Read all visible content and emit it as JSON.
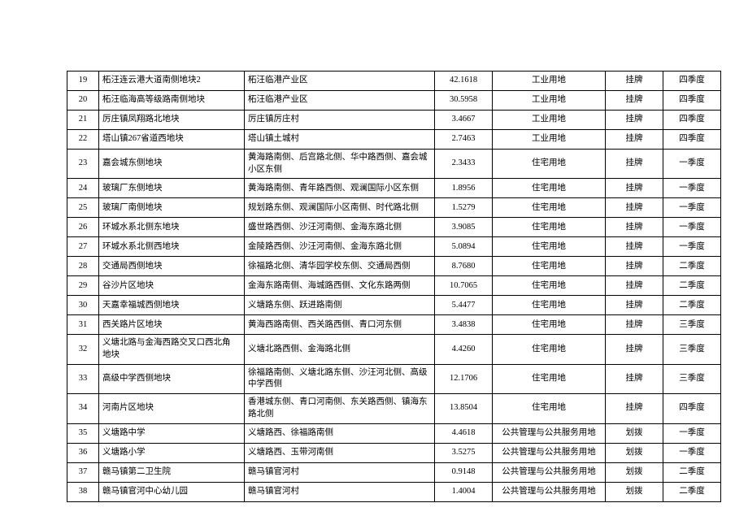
{
  "table": {
    "rows": [
      {
        "idx": "19",
        "name": "柘汪连云港大道南侧地块2",
        "loc": "柘汪临港产业区",
        "area": "42.1618",
        "use": "工业用地",
        "method": "挂牌",
        "quarter": "四季度"
      },
      {
        "idx": "20",
        "name": "柘汪临海高等级路南侧地块",
        "loc": "柘汪临港产业区",
        "area": "30.5958",
        "use": "工业用地",
        "method": "挂牌",
        "quarter": "四季度"
      },
      {
        "idx": "21",
        "name": "厉庄镇凤翔路北地块",
        "loc": "厉庄镇厉庄村",
        "area": "3.4667",
        "use": "工业用地",
        "method": "挂牌",
        "quarter": "四季度"
      },
      {
        "idx": "22",
        "name": "塔山镇267省道西地块",
        "loc": "塔山镇土城村",
        "area": "2.7463",
        "use": "工业用地",
        "method": "挂牌",
        "quarter": "四季度"
      },
      {
        "idx": "23",
        "name": "嘉会城东侧地块",
        "loc": "黄海路南侧、后宫路北侧、华中路西侧、嘉会城小区东侧",
        "area": "2.3433",
        "use": "住宅用地",
        "method": "挂牌",
        "quarter": "一季度"
      },
      {
        "idx": "24",
        "name": "玻璃厂东侧地块",
        "loc": "黄海路南侧、青年路西侧、观澜国际小区东侧",
        "area": "1.8956",
        "use": "住宅用地",
        "method": "挂牌",
        "quarter": "一季度"
      },
      {
        "idx": "25",
        "name": "玻璃厂南侧地块",
        "loc": "规划路东侧、观澜国际小区南侧、时代路北侧",
        "area": "1.5279",
        "use": "住宅用地",
        "method": "挂牌",
        "quarter": "一季度"
      },
      {
        "idx": "26",
        "name": "环城水系北侧东地块",
        "loc": "盛世路西侧、沙汪河南侧、金海东路北侧",
        "area": "3.9085",
        "use": "住宅用地",
        "method": "挂牌",
        "quarter": "一季度"
      },
      {
        "idx": "27",
        "name": "环城水系北侧西地块",
        "loc": "金陵路西侧、沙汪河南侧、金海东路北侧",
        "area": "5.0894",
        "use": "住宅用地",
        "method": "挂牌",
        "quarter": "一季度"
      },
      {
        "idx": "28",
        "name": "交通局西侧地块",
        "loc": "徐福路北侧、清华园学校东侧、交通局西侧",
        "area": "8.7680",
        "use": "住宅用地",
        "method": "挂牌",
        "quarter": "二季度"
      },
      {
        "idx": "29",
        "name": "谷沙片区地块",
        "loc": "金海东路南侧、海城路西侧、文化东路两侧",
        "area": "10.7065",
        "use": "住宅用地",
        "method": "挂牌",
        "quarter": "二季度"
      },
      {
        "idx": "30",
        "name": "天嘉幸福城西侧地块",
        "loc": "义塘路东侧、跃进路南侧",
        "area": "5.4477",
        "use": "住宅用地",
        "method": "挂牌",
        "quarter": "二季度"
      },
      {
        "idx": "31",
        "name": "西关路片区地块",
        "loc": "黄海西路南侧、西关路西侧、青口河东侧",
        "area": "3.4838",
        "use": "住宅用地",
        "method": "挂牌",
        "quarter": "三季度"
      },
      {
        "idx": "32",
        "name": "义塘北路与金海西路交叉口西北角 地块",
        "loc": "义塘北路西侧、金海路北侧",
        "area": "4.4260",
        "use": "住宅用地",
        "method": "挂牌",
        "quarter": "三季度"
      },
      {
        "idx": "33",
        "name": "高级中学西侧地块",
        "loc": "徐福路南侧、义塘北路东侧、沙汪河北侧、高级中学西侧",
        "area": "12.1706",
        "use": "住宅用地",
        "method": "挂牌",
        "quarter": "三季度"
      },
      {
        "idx": "34",
        "name": "河南片区地块",
        "loc": "香港城东侧、青口河南侧、东关路西侧、镇海东路北侧",
        "area": "13.8504",
        "use": "住宅用地",
        "method": "挂牌",
        "quarter": "四季度"
      },
      {
        "idx": "35",
        "name": "义塘路中学",
        "loc": "义塘路西、徐福路南侧",
        "area": "4.4618",
        "use": "公共管理与公共服务用地",
        "method": "划拨",
        "quarter": "一季度"
      },
      {
        "idx": "36",
        "name": "义塘路小学",
        "loc": "义塘路西、玉带河南侧",
        "area": "3.5275",
        "use": "公共管理与公共服务用地",
        "method": "划拨",
        "quarter": "一季度"
      },
      {
        "idx": "37",
        "name": "赣马镇第二卫生院",
        "loc": "赣马镇官河村",
        "area": "0.9148",
        "use": "公共管理与公共服务用地",
        "method": "划拨",
        "quarter": "二季度"
      },
      {
        "idx": "38",
        "name": "赣马镇官河中心幼儿园",
        "loc": "赣马镇官河村",
        "area": "1.4004",
        "use": "公共管理与公共服务用地",
        "method": "划拨",
        "quarter": "二季度"
      }
    ]
  }
}
